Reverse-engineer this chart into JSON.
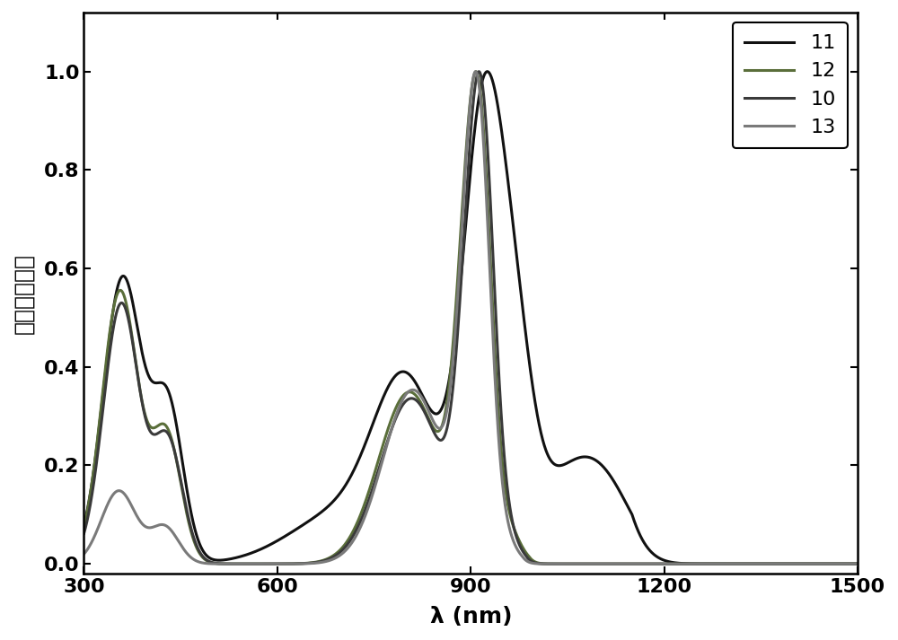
{
  "title": "",
  "xlabel": "λ (nm)",
  "ylabel": "归一化吸收率",
  "xlim": [
    300,
    1500
  ],
  "ylim": [
    -0.02,
    1.12
  ],
  "xticks": [
    300,
    600,
    900,
    1200,
    1500
  ],
  "yticks": [
    0.0,
    0.2,
    0.4,
    0.6,
    0.8,
    1.0
  ],
  "background_color": "#ffffff",
  "series": [
    {
      "label": "11",
      "color": "#111111",
      "linewidth": 2.2
    },
    {
      "label": "12",
      "color": "#5a6e3a",
      "linewidth": 2.2
    },
    {
      "label": "10",
      "color": "#3a3a3a",
      "linewidth": 2.2
    },
    {
      "label": "13",
      "color": "#7a7a7a",
      "linewidth": 2.2
    }
  ],
  "legend_fontsize": 16,
  "axis_fontsize": 18,
  "tick_fontsize": 16
}
